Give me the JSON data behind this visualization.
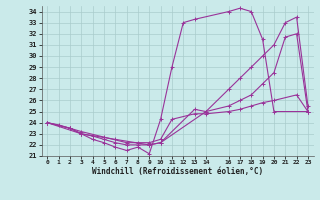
{
  "xlabel": "Windchill (Refroidissement éolien,°C)",
  "bg_color": "#caeaea",
  "line_color": "#993399",
  "grid_color": "#aacccc",
  "xlim": [
    -0.5,
    23.5
  ],
  "ylim": [
    21,
    34.5
  ],
  "xticks": [
    0,
    1,
    2,
    3,
    4,
    5,
    6,
    7,
    8,
    9,
    10,
    11,
    12,
    13,
    14,
    16,
    17,
    18,
    19,
    20,
    21,
    22,
    23
  ],
  "yticks": [
    21,
    22,
    23,
    24,
    25,
    26,
    27,
    28,
    29,
    30,
    31,
    32,
    33,
    34
  ],
  "lines": [
    {
      "x": [
        0,
        1,
        2,
        3,
        4,
        5,
        6,
        7,
        8,
        9,
        10,
        11,
        12,
        13,
        16,
        17,
        18,
        19,
        20,
        23
      ],
      "y": [
        24,
        23.8,
        23.5,
        23.0,
        22.5,
        22.2,
        21.8,
        21.5,
        21.8,
        21.2,
        24.3,
        29.0,
        33.0,
        33.3,
        34.0,
        34.3,
        34.0,
        31.5,
        25.0,
        25.0
      ]
    },
    {
      "x": [
        0,
        2,
        3,
        4,
        5,
        6,
        7,
        8,
        9,
        10,
        13,
        14,
        16,
        17,
        18,
        19,
        20,
        21,
        22,
        23
      ],
      "y": [
        24,
        23.5,
        23.0,
        22.8,
        22.5,
        22.2,
        22.0,
        22.0,
        22.0,
        22.2,
        25.2,
        25.0,
        25.5,
        26.0,
        26.5,
        27.5,
        28.5,
        31.7,
        32.0,
        25.0
      ]
    },
    {
      "x": [
        0,
        3,
        6,
        9,
        10,
        14,
        16,
        17,
        18,
        19,
        20,
        21,
        22,
        23
      ],
      "y": [
        24,
        23.0,
        22.5,
        22.0,
        22.2,
        25.0,
        27.0,
        28.0,
        29.0,
        30.0,
        31.0,
        33.0,
        33.5,
        25.5
      ]
    },
    {
      "x": [
        0,
        2,
        3,
        5,
        7,
        8,
        9,
        10,
        11,
        13,
        14,
        16,
        17,
        18,
        19,
        20,
        22,
        23
      ],
      "y": [
        24,
        23.5,
        23.2,
        22.7,
        22.2,
        22.2,
        22.2,
        22.5,
        24.3,
        24.8,
        24.8,
        25.0,
        25.2,
        25.5,
        25.8,
        26.0,
        26.5,
        25.0
      ]
    }
  ]
}
